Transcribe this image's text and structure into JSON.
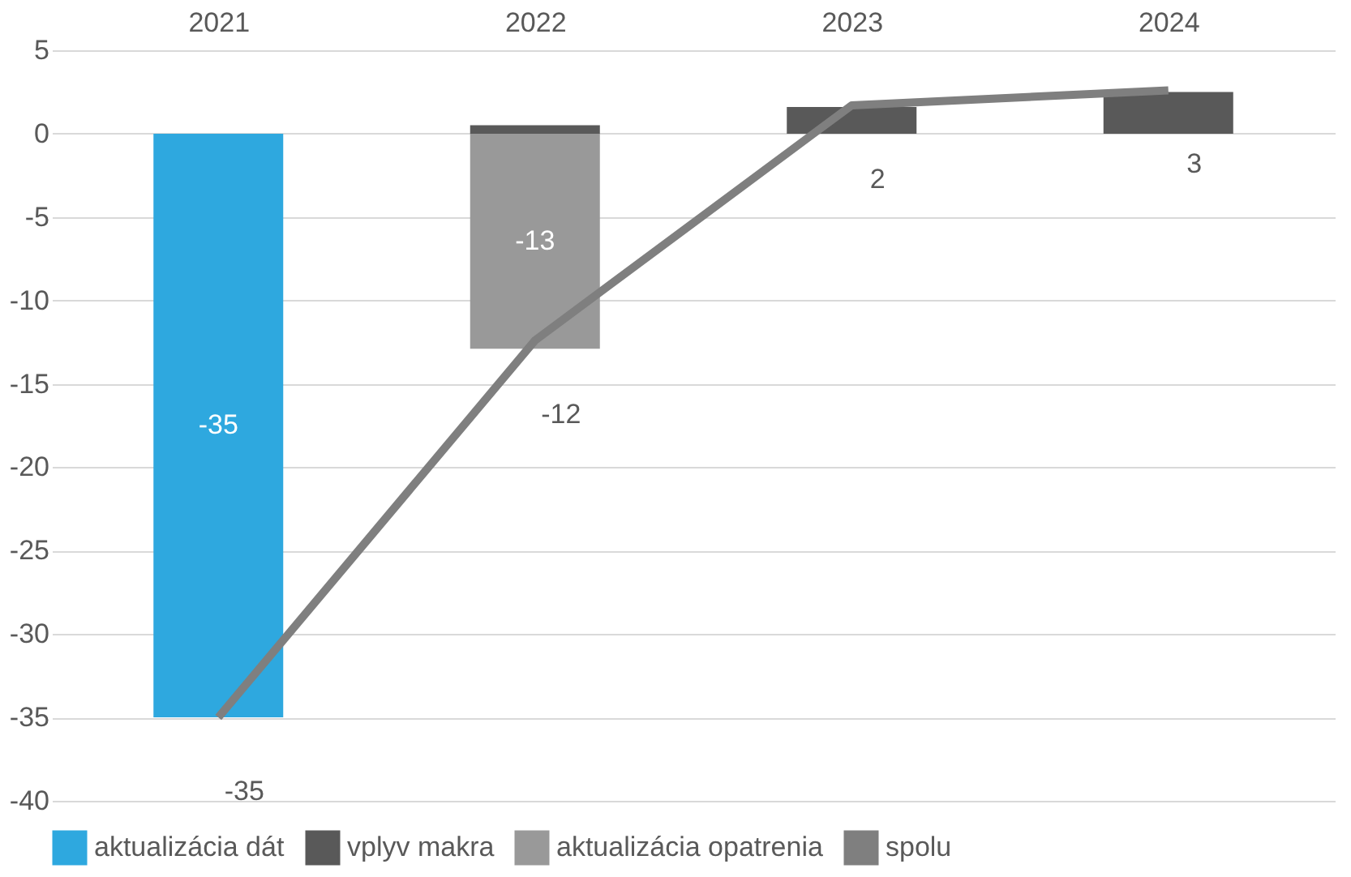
{
  "chart_data": {
    "type": "bar",
    "stacked": true,
    "categories": [
      "2021",
      "2022",
      "2023",
      "2024"
    ],
    "series": [
      {
        "name": "aktualizácia dát",
        "color": "#2ea8df",
        "values": [
          -35,
          null,
          null,
          null
        ],
        "value_labels": [
          "-35",
          null,
          null,
          null
        ]
      },
      {
        "name": "vplyv makra",
        "color": "#595959",
        "values": [
          0,
          0.5,
          1.6,
          2.5
        ]
      },
      {
        "name": "aktualizácia opatrenia",
        "color": "#999999",
        "values": [
          null,
          -12.9,
          null,
          null
        ],
        "value_labels": [
          null,
          "-13",
          null,
          null
        ]
      },
      {
        "name": "spolu",
        "type": "line",
        "color": "#7f7f7f",
        "values": [
          -35,
          -12.4,
          1.7,
          2.6
        ],
        "value_labels": [
          "-35",
          "-12",
          "2",
          "3"
        ]
      }
    ],
    "ylim": [
      -40,
      5
    ],
    "yticks": [
      -40,
      -35,
      -30,
      -25,
      -20,
      -15,
      -10,
      -5,
      0,
      5
    ],
    "grid": "y",
    "legend": "bottom"
  }
}
